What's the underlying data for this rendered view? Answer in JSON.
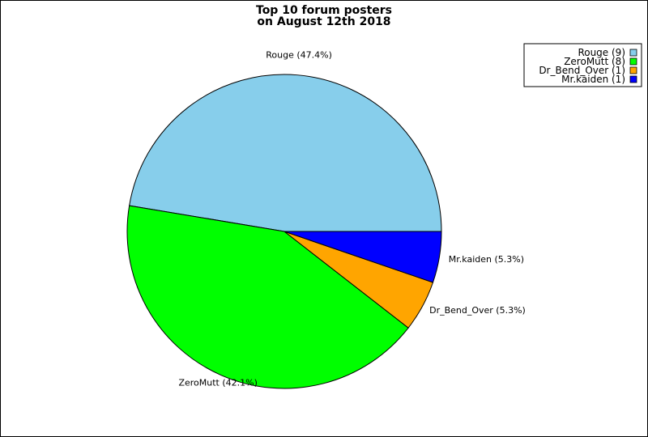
{
  "chart_data": {
    "type": "pie",
    "title": "Top 10 forum posters",
    "subtitle": "on August 12th 2018",
    "legend_position": "top-right",
    "slices": [
      {
        "name": "Rouge",
        "value": 9,
        "percent": "47.4%",
        "legend": "Rouge (9)",
        "label": "Rouge (47.4%)",
        "color": "#87CEEB"
      },
      {
        "name": "ZeroMutt",
        "value": 8,
        "percent": "42.1%",
        "legend": "ZeroMutt (8)",
        "label": "ZeroMutt (42.1%)",
        "color": "#00FF00"
      },
      {
        "name": "Dr_Bend_Over",
        "value": 1,
        "percent": "5.3%",
        "legend": "Dr_Bend_Over (1)",
        "label": "Dr_Bend_Over (5.3%)",
        "color": "#FFA500"
      },
      {
        "name": "Mr.kaiden",
        "value": 1,
        "percent": "5.3%",
        "legend": "Mr.kaiden (1)",
        "label": "Mr.kaiden (5.3%)",
        "color": "#0000FF"
      }
    ]
  }
}
